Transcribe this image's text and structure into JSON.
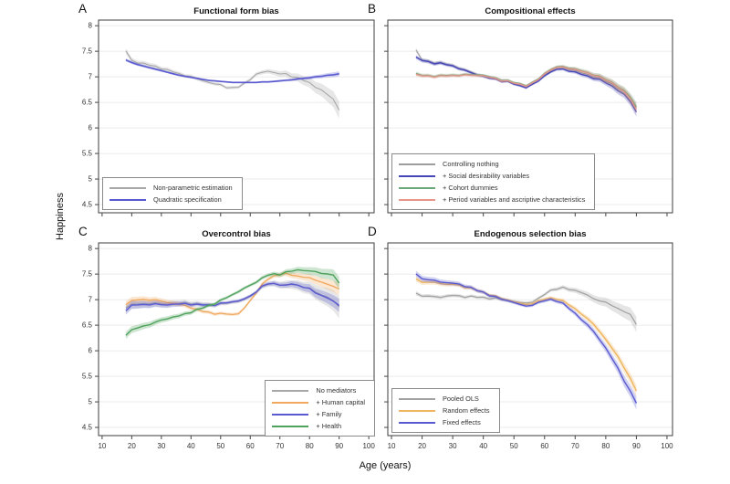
{
  "figure": {
    "y_axis_label": "Happiness",
    "x_axis_label": "Age (years)",
    "y_ticks": [
      "8",
      "7.5",
      "7",
      "6.5",
      "6",
      "5.5",
      "5",
      "4.5"
    ],
    "x_ticks": [
      "10",
      "20",
      "30",
      "40",
      "50",
      "60",
      "70",
      "80",
      "90",
      "100"
    ]
  },
  "chart_data": [
    {
      "panel": "A",
      "title": "Functional form bias",
      "type": "line",
      "xlabel": "Age (years)",
      "ylabel": "Happiness",
      "xlim": [
        8.8,
        101.8
      ],
      "ylim": [
        4.34,
        8.11
      ],
      "grid": "horizontal",
      "legend_position": "bottom-left",
      "x": [
        18,
        20,
        22,
        24,
        26,
        28,
        30,
        32,
        34,
        36,
        38,
        40,
        42,
        44,
        46,
        48,
        50,
        52,
        54,
        56,
        58,
        60,
        62,
        64,
        66,
        68,
        70,
        72,
        74,
        76,
        78,
        80,
        82,
        84,
        86,
        88,
        90
      ],
      "series": [
        {
          "name": "Non-parametric estimation",
          "color": "#a8a8a8",
          "lw": 1.1,
          "wiggly": true,
          "ci": [
            0.05,
            0.03,
            0.17
          ],
          "values": [
            7.5,
            7.32,
            7.28,
            7.26,
            7.23,
            7.2,
            7.17,
            7.13,
            7.1,
            7.06,
            7.03,
            7.0,
            6.96,
            6.93,
            6.89,
            6.86,
            6.84,
            6.8,
            6.78,
            6.8,
            6.87,
            6.96,
            7.04,
            7.09,
            7.11,
            7.09,
            7.05,
            7.06,
            7.01,
            6.98,
            6.93,
            6.88,
            6.81,
            6.73,
            6.66,
            6.56,
            6.36
          ]
        },
        {
          "name": "Quadratic specification",
          "color": "#5a5ad0",
          "lw": 1.6,
          "wiggly": false,
          "ci": [
            0.03,
            0.015,
            0.05
          ],
          "values": [
            7.33,
            7.28,
            7.24,
            7.21,
            7.18,
            7.15,
            7.12,
            7.09,
            7.06,
            7.03,
            7.01,
            6.99,
            6.97,
            6.95,
            6.93,
            6.92,
            6.91,
            6.9,
            6.89,
            6.89,
            6.89,
            6.89,
            6.89,
            6.9,
            6.9,
            6.91,
            6.92,
            6.93,
            6.94,
            6.96,
            6.97,
            6.98,
            7.0,
            7.01,
            7.03,
            7.04,
            7.06
          ]
        }
      ]
    },
    {
      "panel": "B",
      "title": "Compositional effects",
      "type": "line",
      "xlabel": "Age (years)",
      "ylabel": "Happiness",
      "xlim": [
        8.8,
        101.8
      ],
      "ylim": [
        4.34,
        8.11
      ],
      "grid": "horizontal",
      "legend_position": "bottom-left",
      "x": [
        18,
        20,
        22,
        24,
        26,
        28,
        30,
        32,
        34,
        36,
        38,
        40,
        42,
        44,
        46,
        48,
        50,
        52,
        54,
        56,
        58,
        60,
        62,
        64,
        66,
        68,
        70,
        72,
        74,
        76,
        78,
        80,
        82,
        84,
        86,
        88,
        90
      ],
      "series": [
        {
          "name": "Controlling nothing",
          "color": "#9d9d9d",
          "lw": 1.0,
          "wiggly": true,
          "ci": [
            0.04,
            0.025,
            0.09
          ],
          "values": [
            7.52,
            7.33,
            7.3,
            7.28,
            7.27,
            7.25,
            7.22,
            7.18,
            7.13,
            7.09,
            7.05,
            7.02,
            6.99,
            6.97,
            6.95,
            6.92,
            6.88,
            6.85,
            6.83,
            6.87,
            6.95,
            7.05,
            7.12,
            7.17,
            7.18,
            7.15,
            7.12,
            7.08,
            7.04,
            7.01,
            6.97,
            6.92,
            6.86,
            6.78,
            6.7,
            6.57,
            6.4
          ]
        },
        {
          "name": "+ Social desirability variables",
          "color": "#4646b8",
          "lw": 1.4,
          "wiggly": true,
          "ci": [
            0.04,
            0.025,
            0.09
          ],
          "values": [
            7.38,
            7.32,
            7.29,
            7.27,
            7.26,
            7.24,
            7.21,
            7.17,
            7.12,
            7.08,
            7.04,
            7.01,
            6.97,
            6.95,
            6.92,
            6.9,
            6.86,
            6.82,
            6.8,
            6.84,
            6.92,
            7.02,
            7.1,
            7.14,
            7.15,
            7.12,
            7.09,
            7.05,
            7.01,
            6.98,
            6.94,
            6.89,
            6.82,
            6.74,
            6.65,
            6.52,
            6.32
          ]
        },
        {
          "name": "+ Cohort dummies",
          "color": "#69a878",
          "lw": 1.3,
          "wiggly": true,
          "ci": [
            0.035,
            0.025,
            0.09
          ],
          "values": [
            7.06,
            7.03,
            7.02,
            7.02,
            7.02,
            7.03,
            7.03,
            7.04,
            7.04,
            7.04,
            7.04,
            7.03,
            7.0,
            6.97,
            6.94,
            6.92,
            6.89,
            6.86,
            6.84,
            6.88,
            6.96,
            7.07,
            7.15,
            7.19,
            7.2,
            7.18,
            7.15,
            7.12,
            7.08,
            7.05,
            7.0,
            6.95,
            6.89,
            6.81,
            6.72,
            6.6,
            6.42
          ]
        },
        {
          "name": "+ Period variables and ascriptive characteristics",
          "color": "#e8958a",
          "lw": 1.2,
          "wiggly": true,
          "ci": [
            0.035,
            0.025,
            0.09
          ],
          "values": [
            7.04,
            7.02,
            7.01,
            7.01,
            7.01,
            7.02,
            7.02,
            7.03,
            7.03,
            7.03,
            7.03,
            7.02,
            6.99,
            6.96,
            6.93,
            6.91,
            6.88,
            6.85,
            6.83,
            6.87,
            6.95,
            7.06,
            7.14,
            7.18,
            7.19,
            7.17,
            7.14,
            7.11,
            7.07,
            7.04,
            6.99,
            6.94,
            6.88,
            6.8,
            6.7,
            6.57,
            6.37
          ]
        }
      ]
    },
    {
      "panel": "C",
      "title": "Overcontrol bias",
      "type": "line",
      "xlabel": "Age (years)",
      "ylabel": "Happiness",
      "xlim": [
        8.8,
        101.8
      ],
      "ylim": [
        4.34,
        8.11
      ],
      "grid": "horizontal",
      "legend_position": "bottom-right",
      "x": [
        18,
        20,
        22,
        24,
        26,
        28,
        30,
        32,
        34,
        36,
        38,
        40,
        42,
        44,
        46,
        48,
        50,
        52,
        54,
        56,
        58,
        60,
        62,
        64,
        66,
        68,
        70,
        72,
        74,
        76,
        78,
        80,
        82,
        84,
        86,
        88,
        90
      ],
      "series": [
        {
          "name": "No mediators",
          "color": "#a8a8a8",
          "lw": 1.1,
          "wiggly": true,
          "ci": [
            0.09,
            0.035,
            0.22
          ],
          "values": [
            6.85,
            6.9,
            6.92,
            6.92,
            6.93,
            6.93,
            6.92,
            6.92,
            6.93,
            6.93,
            6.94,
            6.93,
            6.92,
            6.91,
            6.9,
            6.9,
            6.91,
            6.93,
            6.95,
            6.97,
            7.0,
            7.06,
            7.15,
            7.25,
            7.3,
            7.31,
            7.3,
            7.28,
            7.3,
            7.28,
            7.25,
            7.22,
            7.15,
            7.1,
            7.05,
            6.98,
            6.85
          ]
        },
        {
          "name": "+ Human capital",
          "color": "#f0a85e",
          "lw": 1.3,
          "wiggly": true,
          "ci": [
            0.07,
            0.03,
            0.12
          ],
          "values": [
            6.92,
            6.97,
            7.0,
            7.0,
            7.0,
            6.99,
            6.97,
            6.95,
            6.93,
            6.91,
            6.88,
            6.85,
            6.8,
            6.77,
            6.75,
            6.73,
            6.72,
            6.72,
            6.71,
            6.73,
            6.83,
            6.98,
            7.14,
            7.3,
            7.4,
            7.46,
            7.5,
            7.5,
            7.48,
            7.46,
            7.45,
            7.42,
            7.38,
            7.35,
            7.3,
            7.26,
            7.2
          ]
        },
        {
          "name": "+ Family",
          "color": "#5a5ad0",
          "lw": 1.4,
          "wiggly": true,
          "ci": [
            0.08,
            0.03,
            0.13
          ],
          "values": [
            6.8,
            6.88,
            6.9,
            6.9,
            6.91,
            6.91,
            6.9,
            6.9,
            6.91,
            6.91,
            6.92,
            6.91,
            6.9,
            6.9,
            6.89,
            6.9,
            6.92,
            6.94,
            6.96,
            6.98,
            7.01,
            7.07,
            7.16,
            7.26,
            7.31,
            7.31,
            7.3,
            7.27,
            7.31,
            7.28,
            7.25,
            7.21,
            7.13,
            7.09,
            7.03,
            6.97,
            6.88
          ]
        },
        {
          "name": "+ Health",
          "color": "#4fa25c",
          "lw": 1.4,
          "wiggly": true,
          "ci": [
            0.07,
            0.03,
            0.12
          ],
          "values": [
            6.32,
            6.4,
            6.45,
            6.48,
            6.52,
            6.55,
            6.6,
            6.63,
            6.66,
            6.68,
            6.72,
            6.76,
            6.8,
            6.84,
            6.88,
            6.93,
            6.98,
            7.04,
            7.1,
            7.16,
            7.22,
            7.28,
            7.35,
            7.42,
            7.48,
            7.5,
            7.5,
            7.53,
            7.56,
            7.58,
            7.58,
            7.55,
            7.55,
            7.52,
            7.5,
            7.48,
            7.32
          ]
        }
      ]
    },
    {
      "panel": "D",
      "title": "Endogenous selection bias",
      "type": "line",
      "xlabel": "Age (years)",
      "ylabel": "Happiness",
      "xlim": [
        8.8,
        101.8
      ],
      "ylim": [
        4.34,
        8.11
      ],
      "grid": "horizontal",
      "legend_position": "bottom-left",
      "x": [
        18,
        20,
        22,
        24,
        26,
        28,
        30,
        32,
        34,
        36,
        38,
        40,
        42,
        44,
        46,
        48,
        50,
        52,
        54,
        56,
        58,
        60,
        62,
        64,
        66,
        68,
        70,
        72,
        74,
        76,
        78,
        80,
        82,
        84,
        86,
        88,
        90
      ],
      "series": [
        {
          "name": "Pooled OLS",
          "color": "#a3a3a3",
          "lw": 1.3,
          "wiggly": true,
          "ci": [
            0.04,
            0.03,
            0.15
          ],
          "values": [
            7.12,
            7.08,
            7.06,
            7.06,
            7.05,
            7.07,
            7.08,
            7.07,
            7.06,
            7.06,
            7.05,
            7.04,
            7.03,
            7.02,
            7.0,
            6.99,
            6.97,
            6.94,
            6.93,
            6.96,
            7.02,
            7.1,
            7.18,
            7.22,
            7.23,
            7.2,
            7.18,
            7.15,
            7.08,
            7.02,
            6.98,
            6.95,
            6.88,
            6.82,
            6.78,
            6.7,
            6.52
          ]
        },
        {
          "name": "Random effects",
          "color": "#efb55f",
          "lw": 1.4,
          "wiggly": true,
          "ci": [
            0.05,
            0.03,
            0.11
          ],
          "values": [
            7.4,
            7.35,
            7.33,
            7.34,
            7.32,
            7.3,
            7.3,
            7.28,
            7.25,
            7.22,
            7.18,
            7.14,
            7.1,
            7.06,
            7.02,
            6.99,
            6.96,
            6.92,
            6.9,
            6.93,
            6.97,
            7.01,
            7.03,
            7.02,
            6.97,
            6.9,
            6.82,
            6.73,
            6.62,
            6.52,
            6.38,
            6.22,
            6.05,
            5.88,
            5.68,
            5.45,
            5.22
          ]
        },
        {
          "name": "Fixed effects",
          "color": "#5a5ad0",
          "lw": 1.4,
          "wiggly": true,
          "ci": [
            0.06,
            0.03,
            0.13
          ],
          "values": [
            7.5,
            7.42,
            7.38,
            7.38,
            7.35,
            7.33,
            7.32,
            7.3,
            7.27,
            7.23,
            7.18,
            7.14,
            7.09,
            7.05,
            7.01,
            6.98,
            6.95,
            6.9,
            6.87,
            6.9,
            6.94,
            6.98,
            7.0,
            6.98,
            6.92,
            6.83,
            6.73,
            6.62,
            6.5,
            6.38,
            6.22,
            6.05,
            5.85,
            5.65,
            5.42,
            5.2,
            4.98
          ]
        }
      ]
    }
  ]
}
